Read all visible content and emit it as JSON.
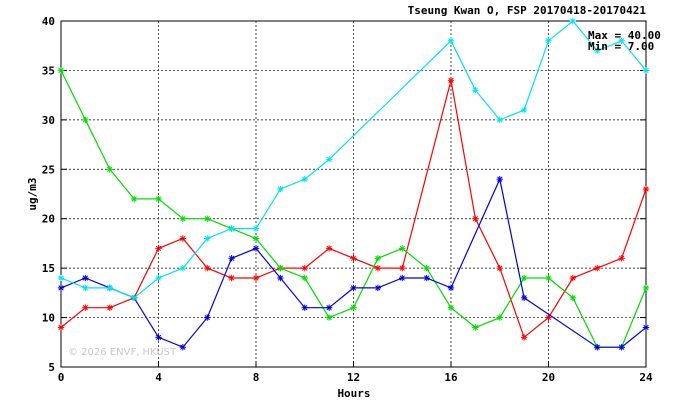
{
  "chart_data": {
    "type": "line",
    "title": "Tseung Kwan O, FSP 20170418-20170421",
    "xlabel": "Hours",
    "ylabel": "ug/m3",
    "xlim": [
      0,
      24
    ],
    "ylim": [
      5,
      40
    ],
    "x_ticks": [
      0,
      4,
      8,
      12,
      16,
      20,
      24
    ],
    "y_ticks": [
      5,
      10,
      15,
      20,
      25,
      30,
      35,
      40
    ],
    "grid": true,
    "x": [
      0,
      1,
      2,
      3,
      4,
      5,
      6,
      7,
      8,
      9,
      10,
      11,
      12,
      13,
      14,
      15,
      16,
      17,
      18,
      19,
      20,
      21,
      22,
      23,
      24
    ],
    "series": [
      {
        "color": "#ff0000",
        "values": [
          9,
          11,
          11,
          12,
          17,
          18,
          15,
          14,
          14,
          15,
          15,
          17,
          16,
          15,
          15,
          null,
          34,
          20,
          15,
          8,
          10,
          14,
          15,
          16,
          23
        ]
      },
      {
        "color": "#00dd00",
        "values": [
          35,
          30,
          25,
          22,
          22,
          20,
          20,
          19,
          18,
          15,
          14,
          10,
          11,
          16,
          17,
          15,
          11,
          9,
          10,
          14,
          14,
          12,
          7,
          7,
          13
        ]
      },
      {
        "color": "#0000dd",
        "values": [
          13,
          14,
          13,
          12,
          8,
          7,
          10,
          16,
          17,
          14,
          11,
          11,
          13,
          13,
          14,
          14,
          13,
          null,
          24,
          12,
          null,
          null,
          7,
          7,
          9
        ]
      },
      {
        "color": "#00e5ee",
        "values": [
          14,
          13,
          13,
          12,
          14,
          15,
          18,
          19,
          19,
          23,
          24,
          26,
          null,
          null,
          null,
          null,
          38,
          33,
          30,
          31,
          38,
          40,
          37,
          38,
          35
        ]
      }
    ],
    "stats": {
      "max": "Max = 40.00",
      "min": "Min =  7.00"
    },
    "watermark": "© 2026  ENVF, HKUST"
  }
}
